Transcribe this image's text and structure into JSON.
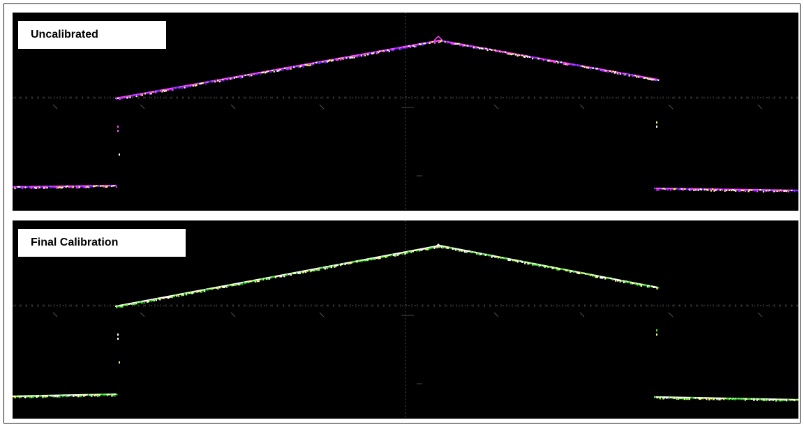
{
  "panels": [
    {
      "id": "uncalibrated",
      "label": "Uncalibrated",
      "palette": [
        "#ffff55",
        "#ff44ff",
        "#5522ff",
        "#ffffff",
        "#9933ff"
      ]
    },
    {
      "id": "final-calibration",
      "label": "Final Calibration",
      "palette": [
        "#44ff22",
        "#ffffff",
        "#99ff66",
        "#ffff77",
        "#22cc22"
      ]
    }
  ]
}
